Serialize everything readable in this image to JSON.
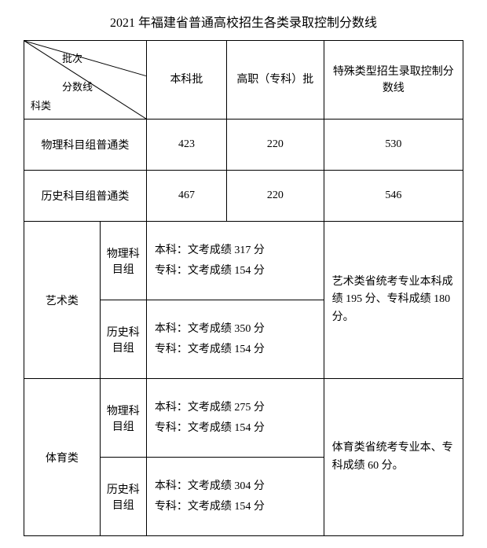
{
  "title": "2021 年福建省普通高校招生各类录取控制分数线",
  "header": {
    "diagonal": {
      "batch": "批次",
      "scoreline": "分数线",
      "subject": "科类"
    },
    "col_benke": "本科批",
    "col_gaozhi": "高职（专科）批",
    "col_special": "特殊类型招生录取控制分数线"
  },
  "rows": {
    "physics_normal": {
      "label": "物理科目组普通类",
      "benke": "423",
      "gaozhi": "220",
      "special": "530"
    },
    "history_normal": {
      "label": "历史科目组普通类",
      "benke": "467",
      "gaozhi": "220",
      "special": "546"
    },
    "art": {
      "label": "艺术类",
      "physics": {
        "label": "物理科目组",
        "text": "本科：文考成绩 317 分\n专科：文考成绩  154  分"
      },
      "history": {
        "label": "历史科目组",
        "text": "本科：文考成绩 350 分\n专科：文考成绩  154  分"
      },
      "special": "艺术类省统考专业本科成绩 195 分、专科成绩 180 分。"
    },
    "pe": {
      "label": "体育类",
      "physics": {
        "label": "物理科目组",
        "text": "本科：文考成绩 275 分\n专科：文考成绩 154 分"
      },
      "history": {
        "label": "历史科目组",
        "text": "本科：文考成绩 304 分\n专科：文考成绩 154 分"
      },
      "special": "体育类省统考专业本、专科成绩 60 分。"
    }
  },
  "styling": {
    "border_color": "#000000",
    "background": "#ffffff",
    "font_family": "SimSun",
    "base_font_size": 14,
    "title_font_size": 16
  }
}
